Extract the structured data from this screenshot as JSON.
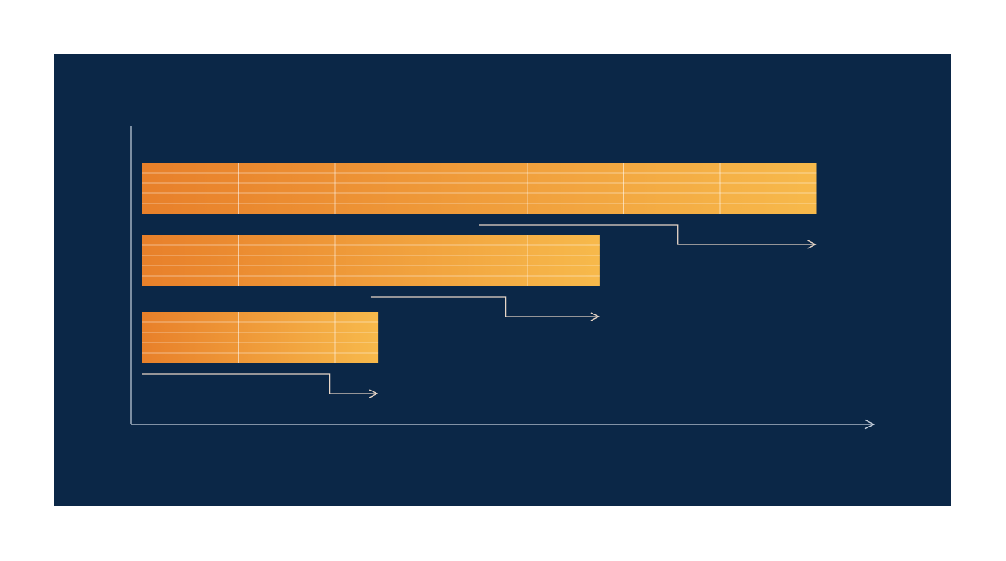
{
  "chart_data": {
    "type": "bar",
    "orientation": "horizontal",
    "values": [
      7,
      4.75,
      2.45
    ],
    "xlim": [
      0,
      7.6
    ],
    "gradient": [
      "#e8802a",
      "#f7b94b"
    ],
    "background": "#0b2747"
  }
}
